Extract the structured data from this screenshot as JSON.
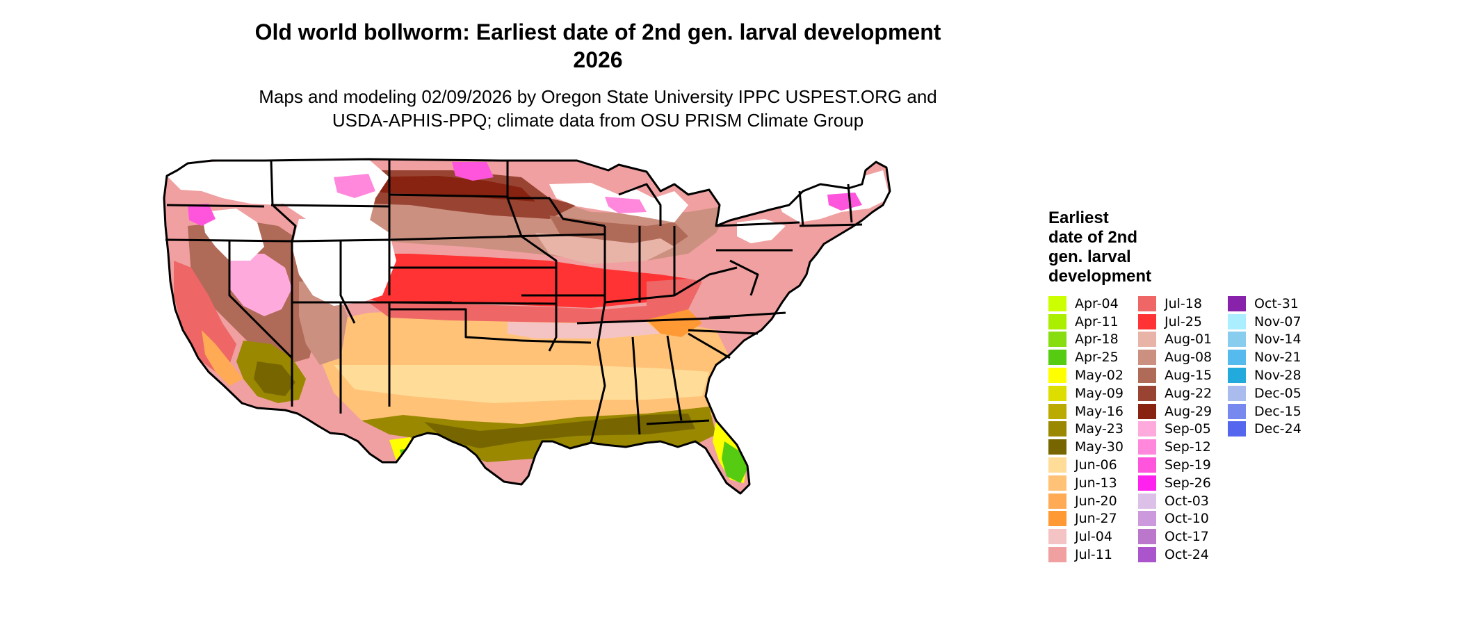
{
  "header": {
    "title_line1": "Old world bollworm: Earliest date of 2nd gen. larval development",
    "title_line2": "2026",
    "subtitle_line1": "Maps and modeling 02/09/2026 by Oregon State University IPPC USPEST.ORG and",
    "subtitle_line2": "USDA-APHIS-PPQ; climate data from OSU PRISM Climate Group"
  },
  "legend": {
    "title_lines": [
      "Earliest",
      "date of 2nd",
      "gen. larval",
      "development"
    ],
    "columns": [
      [
        {
          "label": "Apr-04",
          "color": "#ccff00"
        },
        {
          "label": "Apr-11",
          "color": "#aaee00"
        },
        {
          "label": "Apr-18",
          "color": "#88dd11"
        },
        {
          "label": "Apr-25",
          "color": "#55cc11"
        },
        {
          "label": "May-02",
          "color": "#ffff00"
        },
        {
          "label": "May-09",
          "color": "#dddd00"
        },
        {
          "label": "May-16",
          "color": "#bbaa00"
        },
        {
          "label": "May-23",
          "color": "#998800"
        },
        {
          "label": "May-30",
          "color": "#776600"
        },
        {
          "label": "Jun-06",
          "color": "#ffdd99"
        },
        {
          "label": "Jun-13",
          "color": "#ffc277"
        },
        {
          "label": "Jun-20",
          "color": "#ffaa55"
        },
        {
          "label": "Jun-27",
          "color": "#ff9933"
        },
        {
          "label": "Jul-04",
          "color": "#f4c4c4"
        },
        {
          "label": "Jul-11",
          "color": "#f0a0a0"
        }
      ],
      [
        {
          "label": "Jul-18",
          "color": "#ee6666"
        },
        {
          "label": "Jul-25",
          "color": "#ff3333"
        },
        {
          "label": "Aug-01",
          "color": "#e8b4a8"
        },
        {
          "label": "Aug-08",
          "color": "#cc9080"
        },
        {
          "label": "Aug-15",
          "color": "#b06a58"
        },
        {
          "label": "Aug-22",
          "color": "#994433"
        },
        {
          "label": "Aug-29",
          "color": "#882211"
        },
        {
          "label": "Sep-05",
          "color": "#ffaadd"
        },
        {
          "label": "Sep-12",
          "color": "#ff88dd"
        },
        {
          "label": "Sep-19",
          "color": "#ff55dd"
        },
        {
          "label": "Sep-26",
          "color": "#ff22ee"
        },
        {
          "label": "Oct-03",
          "color": "#ddc0e8"
        },
        {
          "label": "Oct-10",
          "color": "#cc99dd"
        },
        {
          "label": "Oct-17",
          "color": "#bb77cc"
        },
        {
          "label": "Oct-24",
          "color": "#aa55cc"
        }
      ],
      [
        {
          "label": "Oct-31",
          "color": "#8822aa"
        },
        {
          "label": "Nov-07",
          "color": "#aaeeff"
        },
        {
          "label": "Nov-14",
          "color": "#88ccee"
        },
        {
          "label": "Nov-21",
          "color": "#55bbee"
        },
        {
          "label": "Nov-28",
          "color": "#22aadd"
        },
        {
          "label": "Dec-05",
          "color": "#aabbee"
        },
        {
          "label": "Dec-15",
          "color": "#7788ee"
        },
        {
          "label": "Dec-24",
          "color": "#5566ee"
        }
      ]
    ]
  }
}
